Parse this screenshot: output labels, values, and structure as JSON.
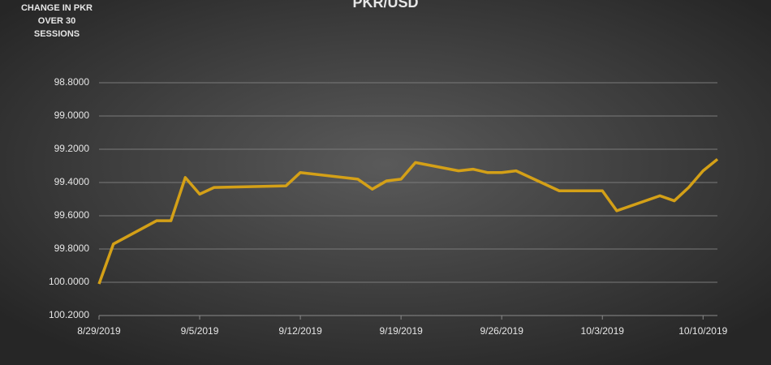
{
  "chart_data": {
    "type": "line",
    "title": "PKR/USD",
    "y_label": "CHANGE IN PKR OVER 30 SESSIONS",
    "x": [
      "8/29/2019",
      "8/30/2019",
      "9/2/2019",
      "9/3/2019",
      "9/4/2019",
      "9/5/2019",
      "9/6/2019",
      "9/11/2019",
      "9/12/2019",
      "9/16/2019",
      "9/17/2019",
      "9/18/2019",
      "9/19/2019",
      "9/20/2019",
      "9/23/2019",
      "9/24/2019",
      "9/25/2019",
      "9/26/2019",
      "9/27/2019",
      "9/30/2019",
      "10/1/2019",
      "10/2/2019",
      "10/3/2019",
      "10/4/2019",
      "10/7/2019",
      "10/8/2019",
      "10/9/2019",
      "10/10/2019",
      "10/11/2019"
    ],
    "series": [
      {
        "name": "PKR/USD",
        "color": "#d4a017",
        "values": [
          100.01,
          99.77,
          99.63,
          99.63,
          99.37,
          99.47,
          99.43,
          99.42,
          99.34,
          99.38,
          99.44,
          99.39,
          99.38,
          99.28,
          99.33,
          99.32,
          99.34,
          99.34,
          99.33,
          99.45,
          99.45,
          99.45,
          99.45,
          99.57,
          99.48,
          99.51,
          99.43,
          99.33,
          99.26
        ]
      }
    ],
    "xlim": [
      "8/29/2019",
      "10/11/2019"
    ],
    "xticks": [
      "8/29/2019",
      "9/5/2019",
      "9/12/2019",
      "9/19/2019",
      "9/26/2019",
      "10/3/2019",
      "10/10/2019"
    ],
    "ylim": [
      98.8,
      100.2
    ],
    "y_reversed": true,
    "yticks": [
      {
        "value": 98.8,
        "label": "98.8000"
      },
      {
        "value": 99.0,
        "label": "99.0000"
      },
      {
        "value": 99.2,
        "label": "99.2000"
      },
      {
        "value": 99.4,
        "label": "99.4000"
      },
      {
        "value": 99.6,
        "label": "99.6000"
      },
      {
        "value": 99.8,
        "label": "99.8000"
      },
      {
        "value": 100.0,
        "label": "100.0000"
      },
      {
        "value": 100.2,
        "label": "100.2000"
      }
    ],
    "grid": true
  }
}
